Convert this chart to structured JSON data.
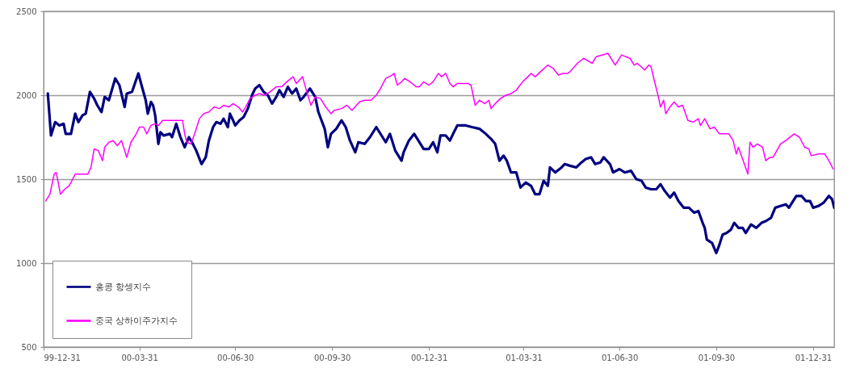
{
  "chart_data": {
    "type": "line",
    "xlim": [
      "1999-12-31",
      "2002-01-20"
    ],
    "xticks": [
      {
        "value": "1999-12-31",
        "label": "99-12-31"
      },
      {
        "value": "2000-03-31",
        "label": "00-03-31"
      },
      {
        "value": "2000-06-30",
        "label": "00-06-30"
      },
      {
        "value": "2000-09-30",
        "label": "00-09-30"
      },
      {
        "value": "2000-12-31",
        "label": "00-12-31"
      },
      {
        "value": "2001-03-31",
        "label": "01-03-31"
      },
      {
        "value": "2001-06-30",
        "label": "01-06-30"
      },
      {
        "value": "2001-09-30",
        "label": "01-09-30"
      },
      {
        "value": "2001-12-31",
        "label": "01-12-31"
      }
    ],
    "ylim": [
      500,
      2500
    ],
    "yticks": [
      500,
      1000,
      1500,
      2000,
      2500
    ],
    "grid": "y",
    "legend": "bottom left",
    "line_style": "solid",
    "series": [
      {
        "name": "홍콩 항셍지수",
        "color": "#000080",
        "x": [
          "2000-01-04",
          "2000-01-07",
          "2000-01-11",
          "2000-01-15",
          "2000-01-19",
          "2000-01-21",
          "2000-01-26",
          "2000-01-30",
          "2000-02-02",
          "2000-02-06",
          "2000-02-09",
          "2000-02-13",
          "2000-02-17",
          "2000-02-20",
          "2000-02-24",
          "2000-02-27",
          "2000-03-02",
          "2000-03-08",
          "2000-03-12",
          "2000-03-17",
          "2000-03-19",
          "2000-03-24",
          "2000-03-30",
          "2000-04-02",
          "2000-04-06",
          "2000-04-08",
          "2000-04-11",
          "2000-04-13",
          "2000-04-15",
          "2000-04-18",
          "2000-04-20",
          "2000-04-23",
          "2000-04-29",
          "2000-05-01",
          "2000-05-05",
          "2000-05-09",
          "2000-05-13",
          "2000-05-17",
          "2000-05-20",
          "2000-05-24",
          "2000-05-29",
          "2000-06-02",
          "2000-06-05",
          "2000-06-09",
          "2000-06-12",
          "2000-06-16",
          "2000-06-19",
          "2000-06-23",
          "2000-06-25",
          "2000-06-28",
          "2000-06-30",
          "2000-07-04",
          "2000-07-08",
          "2000-07-12",
          "2000-07-16",
          "2000-07-19",
          "2000-07-23",
          "2000-07-27",
          "2000-07-31",
          "2000-08-04",
          "2000-08-08",
          "2000-08-11",
          "2000-08-15",
          "2000-08-19",
          "2000-08-23",
          "2000-08-27",
          "2000-08-31",
          "2000-09-03",
          "2000-09-09",
          "2000-09-14",
          "2000-09-17",
          "2000-09-23",
          "2000-09-26",
          "2000-09-29",
          "2000-10-04",
          "2000-10-09",
          "2000-10-13",
          "2000-10-17",
          "2000-10-22",
          "2000-10-25",
          "2000-10-31",
          "2000-11-05",
          "2000-11-11",
          "2000-11-17",
          "2000-11-20",
          "2000-11-24",
          "2000-11-29",
          "2000-12-05",
          "2000-12-07",
          "2000-12-12",
          "2000-12-17",
          "2000-12-21",
          "2000-12-26",
          "2000-12-31",
          "2001-01-04",
          "2001-01-08",
          "2001-01-11",
          "2001-01-16",
          "2001-01-20",
          "2001-01-23",
          "2001-01-27",
          "2001-02-04",
          "2001-02-10",
          "2001-02-17",
          "2001-02-23",
          "2001-02-28",
          "2001-03-04",
          "2001-03-08",
          "2001-03-12",
          "2001-03-15",
          "2001-03-19",
          "2001-03-24",
          "2001-03-28",
          "2001-04-02",
          "2001-04-07",
          "2001-04-11",
          "2001-04-15",
          "2001-04-19",
          "2001-04-23",
          "2001-04-25",
          "2001-04-30",
          "2001-05-06",
          "2001-05-09",
          "2001-05-14",
          "2001-05-20",
          "2001-05-25",
          "2001-05-29",
          "2001-06-03",
          "2001-06-07",
          "2001-06-12",
          "2001-06-15",
          "2001-06-21",
          "2001-06-24",
          "2001-06-30",
          "2001-07-05",
          "2001-07-11",
          "2001-07-16",
          "2001-07-21",
          "2001-07-25",
          "2001-07-30",
          "2001-08-04",
          "2001-08-08",
          "2001-08-12",
          "2001-08-17",
          "2001-08-21",
          "2001-08-25",
          "2001-08-30",
          "2001-09-04",
          "2001-09-09",
          "2001-09-13",
          "2001-09-17",
          "2001-09-19",
          "2001-09-21",
          "2001-09-26",
          "2001-09-30",
          "2001-10-03",
          "2001-10-06",
          "2001-10-10",
          "2001-10-14",
          "2001-10-17",
          "2001-10-21",
          "2001-10-25",
          "2001-10-28",
          "2001-11-02",
          "2001-11-07",
          "2001-11-12",
          "2001-11-16",
          "2001-11-21",
          "2001-11-25",
          "2001-11-30",
          "2001-12-05",
          "2001-12-08",
          "2001-12-11",
          "2001-12-15",
          "2001-12-20",
          "2001-12-24",
          "2001-12-28",
          "2001-12-31",
          "2002-01-05",
          "2002-01-10",
          "2002-01-15",
          "2002-01-18",
          "2002-01-20"
        ],
        "values": [
          2010,
          1760,
          1840,
          1820,
          1830,
          1770,
          1770,
          1890,
          1840,
          1880,
          1890,
          2020,
          1980,
          1940,
          1900,
          1990,
          1970,
          2100,
          2060,
          1930,
          2010,
          2020,
          2130,
          2060,
          1970,
          1890,
          1960,
          1940,
          1880,
          1710,
          1780,
          1760,
          1770,
          1750,
          1830,
          1750,
          1690,
          1750,
          1720,
          1670,
          1590,
          1630,
          1730,
          1810,
          1840,
          1830,
          1860,
          1810,
          1890,
          1850,
          1820,
          1850,
          1870,
          1920,
          2000,
          2040,
          2060,
          2020,
          2000,
          1950,
          1990,
          2030,
          1990,
          2050,
          2010,
          2040,
          1970,
          1990,
          2040,
          1990,
          1900,
          1800,
          1690,
          1770,
          1800,
          1850,
          1810,
          1730,
          1660,
          1720,
          1710,
          1750,
          1810,
          1750,
          1720,
          1770,
          1670,
          1610,
          1660,
          1730,
          1770,
          1730,
          1680,
          1680,
          1720,
          1660,
          1760,
          1760,
          1730,
          1770,
          1820,
          1820,
          1810,
          1800,
          1770,
          1740,
          1710,
          1610,
          1640,
          1610,
          1540,
          1540,
          1450,
          1480,
          1460,
          1410,
          1410,
          1490,
          1460,
          1570,
          1540,
          1570,
          1590,
          1580,
          1570,
          1600,
          1620,
          1630,
          1590,
          1600,
          1630,
          1590,
          1540,
          1560,
          1540,
          1550,
          1500,
          1490,
          1450,
          1440,
          1440,
          1470,
          1430,
          1390,
          1420,
          1370,
          1330,
          1330,
          1300,
          1310,
          1240,
          1210,
          1140,
          1120,
          1060,
          1110,
          1170,
          1180,
          1200,
          1240,
          1210,
          1210,
          1180,
          1230,
          1210,
          1240,
          1250,
          1270,
          1330,
          1340,
          1350,
          1330,
          1360,
          1400,
          1400,
          1370,
          1370,
          1330,
          1340,
          1360,
          1400,
          1380,
          1330
        ]
      },
      {
        "name": "중국 상하이주가지수",
        "color": "#ff00ff",
        "x": [
          "2000-01-02",
          "2000-01-06",
          "2000-01-10",
          "2000-01-12",
          "2000-01-16",
          "2000-01-20",
          "2000-01-24",
          "2000-01-26",
          "2000-01-30",
          "2000-02-11",
          "2000-02-14",
          "2000-02-17",
          "2000-02-21",
          "2000-02-25",
          "2000-02-27",
          "2000-03-02",
          "2000-03-06",
          "2000-03-10",
          "2000-03-14",
          "2000-03-19",
          "2000-03-23",
          "2000-03-28",
          "2000-03-31",
          "2000-04-04",
          "2000-04-07",
          "2000-04-11",
          "2000-04-15",
          "2000-04-18",
          "2000-04-22",
          "2000-04-30",
          "2000-05-11",
          "2000-05-13",
          "2000-05-15",
          "2000-05-19",
          "2000-05-23",
          "2000-05-27",
          "2000-05-31",
          "2000-06-05",
          "2000-06-10",
          "2000-06-15",
          "2000-06-19",
          "2000-06-24",
          "2000-06-28",
          "2000-07-03",
          "2000-07-07",
          "2000-07-10",
          "2000-07-14",
          "2000-07-19",
          "2000-07-23",
          "2000-07-28",
          "2000-08-02",
          "2000-08-08",
          "2000-08-13",
          "2000-08-18",
          "2000-08-24",
          "2000-08-27",
          "2000-09-02",
          "2000-09-06",
          "2000-09-10",
          "2000-09-14",
          "2000-09-19",
          "2000-09-24",
          "2000-09-29",
          "2000-10-02",
          "2000-10-09",
          "2000-10-14",
          "2000-10-19",
          "2000-10-26",
          "2000-10-31",
          "2000-11-06",
          "2000-11-11",
          "2000-11-15",
          "2000-11-20",
          "2000-11-26",
          "2000-11-28",
          "2000-12-01",
          "2000-12-05",
          "2000-12-08",
          "2000-12-13",
          "2000-12-19",
          "2000-12-22",
          "2000-12-26",
          "2000-12-31",
          "2001-01-04",
          "2001-01-09",
          "2001-01-12",
          "2001-01-16",
          "2001-01-20",
          "2001-01-23",
          "2001-01-27",
          "2001-02-06",
          "2001-02-09",
          "2001-02-13",
          "2001-02-17",
          "2001-02-22",
          "2001-02-26",
          "2001-02-28",
          "2001-03-04",
          "2001-03-09",
          "2001-03-14",
          "2001-03-19",
          "2001-03-24",
          "2001-03-30",
          "2001-04-04",
          "2001-04-07",
          "2001-04-11",
          "2001-04-16",
          "2001-04-23",
          "2001-04-28",
          "2001-05-03",
          "2001-05-07",
          "2001-05-12",
          "2001-05-14",
          "2001-05-21",
          "2001-05-27",
          "2001-06-04",
          "2001-06-08",
          "2001-06-14",
          "2001-06-19",
          "2001-06-22",
          "2001-06-26",
          "2001-07-02",
          "2001-07-10",
          "2001-07-14",
          "2001-07-17",
          "2001-07-24",
          "2001-07-28",
          "2001-07-30",
          "2001-08-02",
          "2001-08-06",
          "2001-08-08",
          "2001-08-11",
          "2001-08-13",
          "2001-08-17",
          "2001-08-21",
          "2001-08-25",
          "2001-08-29",
          "2001-09-03",
          "2001-09-08",
          "2001-09-13",
          "2001-09-15",
          "2001-09-19",
          "2001-09-24",
          "2001-09-28",
          "2001-10-03",
          "2001-10-12",
          "2001-10-16",
          "2001-10-19",
          "2001-10-21",
          "2001-10-25",
          "2001-10-30",
          "2001-11-01",
          "2001-11-04",
          "2001-11-08",
          "2001-11-13",
          "2001-11-16",
          "2001-11-20",
          "2001-11-23",
          "2001-11-30",
          "2001-12-05",
          "2001-12-13",
          "2001-12-18",
          "2001-12-23",
          "2001-12-27",
          "2001-12-29",
          "2002-01-05",
          "2002-01-11",
          "2002-01-15",
          "2002-01-19"
        ],
        "values": [
          1370,
          1410,
          1530,
          1540,
          1410,
          1440,
          1460,
          1480,
          1530,
          1530,
          1570,
          1680,
          1670,
          1610,
          1690,
          1720,
          1730,
          1700,
          1730,
          1630,
          1720,
          1770,
          1810,
          1810,
          1770,
          1820,
          1830,
          1820,
          1850,
          1850,
          1850,
          1770,
          1720,
          1710,
          1780,
          1860,
          1890,
          1900,
          1930,
          1920,
          1940,
          1930,
          1950,
          1930,
          1900,
          1930,
          1980,
          2000,
          2010,
          2000,
          2020,
          2050,
          2050,
          2080,
          2110,
          2070,
          2110,
          2020,
          1940,
          1990,
          1980,
          1930,
          1890,
          1910,
          1920,
          1940,
          1910,
          1960,
          1970,
          1970,
          2000,
          2040,
          2100,
          2120,
          2130,
          2060,
          2080,
          2100,
          2080,
          2050,
          2050,
          2080,
          2060,
          2080,
          2130,
          2110,
          2130,
          2070,
          2050,
          2070,
          2070,
          2060,
          1940,
          1970,
          1950,
          1970,
          1920,
          1950,
          1980,
          2000,
          2010,
          2030,
          2080,
          2110,
          2130,
          2110,
          2140,
          2180,
          2160,
          2120,
          2130,
          2130,
          2140,
          2190,
          2220,
          2190,
          2230,
          2240,
          2250,
          2220,
          2180,
          2240,
          2220,
          2180,
          2190,
          2150,
          2180,
          2170,
          2090,
          1990,
          1930,
          1970,
          1890,
          1930,
          1960,
          1930,
          1940,
          1850,
          1840,
          1860,
          1820,
          1860,
          1800,
          1810,
          1770,
          1770,
          1730,
          1650,
          1690,
          1620,
          1530,
          1720,
          1690,
          1710,
          1690,
          1610,
          1630,
          1630,
          1710,
          1730,
          1770,
          1750,
          1690,
          1680,
          1640,
          1650,
          1650,
          1610,
          1560
        ]
      }
    ]
  }
}
